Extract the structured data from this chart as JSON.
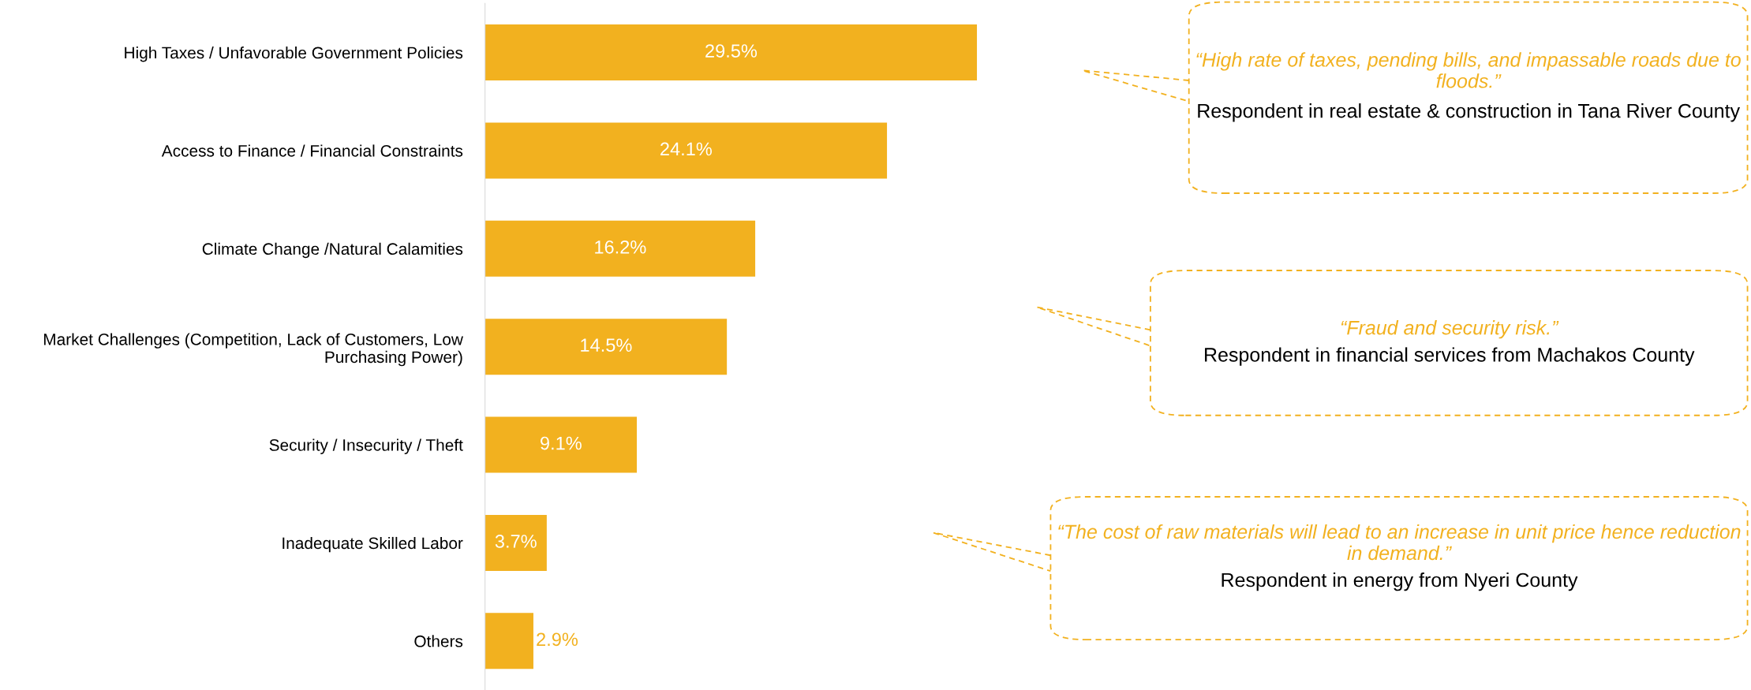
{
  "chart_data": {
    "type": "bar",
    "orientation": "horizontal",
    "categories": [
      "High Taxes / Unfavorable Government Policies",
      "Access to Finance / Financial Constraints",
      "Climate Change /Natural Calamities",
      "Market Challenges (Competition, Lack of Customers, Low Purchasing Power)",
      "Security / Insecurity / Theft",
      "Inadequate Skilled Labor",
      "Others"
    ],
    "values": [
      29.5,
      24.1,
      16.2,
      14.5,
      9.1,
      3.7,
      2.9
    ],
    "value_labels": [
      "29.5%",
      "24.1%",
      "16.2%",
      "14.5%",
      "9.1%",
      "3.7%",
      "2.9%"
    ],
    "color": "#f2b11f",
    "tick_labels": "y",
    "grid": false,
    "annotations": [
      "“High rate of taxes, pending bills, and impassable roads due to floods.”",
      "Respondent in real estate & construction in Tana River County",
      "“Fraud and security risk.”",
      "Respondent in financial services from Machakos County",
      "“The cost of raw materials will lead to an increase in unit price hence reduction in demand.”",
      "Respondent in energy from Nyeri County"
    ]
  }
}
